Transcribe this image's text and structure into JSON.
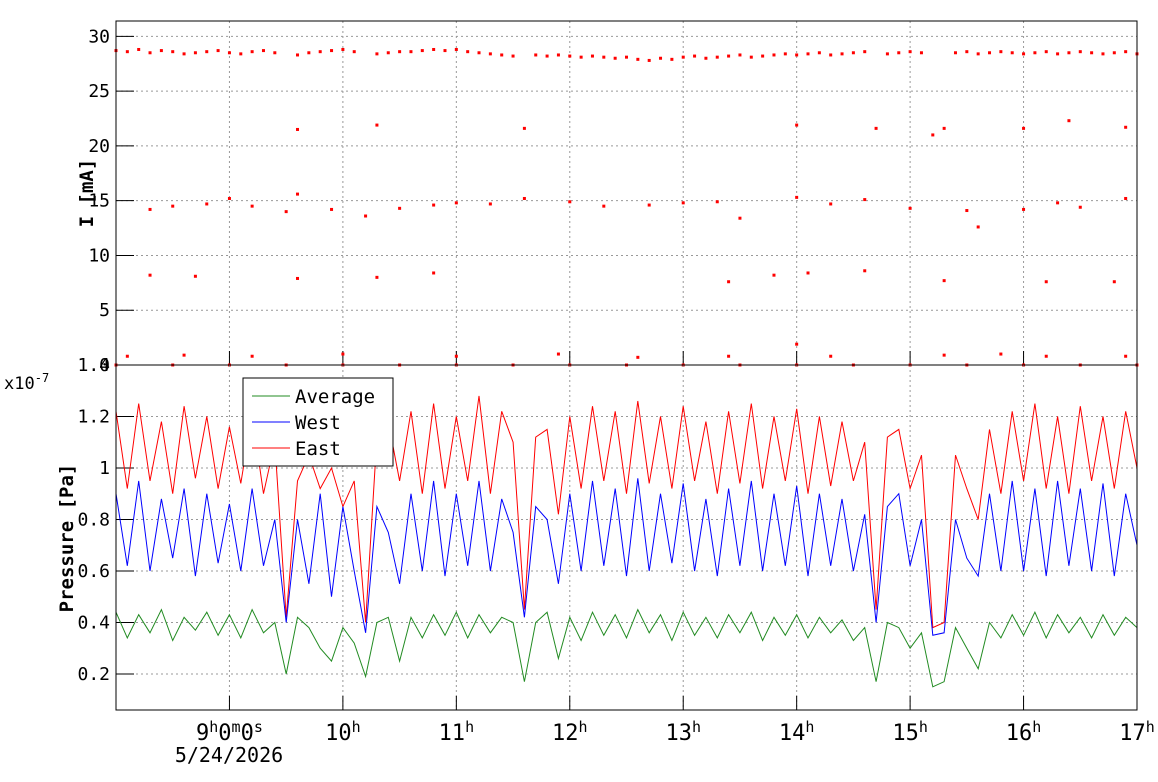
{
  "chart_data": [
    {
      "type": "scatter",
      "ylabel": "I [mA]",
      "color": "#ff0000",
      "grid": true,
      "xlim": [
        8,
        17
      ],
      "xticks": [
        9,
        10,
        11,
        12,
        13,
        14,
        15,
        16,
        17
      ],
      "ylim": [
        0,
        31.4
      ],
      "yticks": [
        0,
        5,
        10,
        15,
        20,
        25,
        30
      ],
      "x": [
        8.0,
        8.1,
        8.2,
        8.3,
        8.4,
        8.5,
        8.6,
        8.7,
        8.8,
        8.9,
        9.0,
        9.1,
        9.2,
        9.3,
        9.4,
        9.5,
        9.6,
        9.7,
        9.8,
        9.9,
        10.0,
        10.1,
        10.2,
        10.3,
        10.4,
        10.5,
        10.6,
        10.7,
        10.8,
        10.9,
        11.0,
        11.1,
        11.2,
        11.3,
        11.4,
        11.5,
        11.6,
        11.7,
        11.8,
        11.9,
        12.0,
        12.1,
        12.2,
        12.3,
        12.4,
        12.5,
        12.6,
        12.7,
        12.8,
        12.9,
        13.0,
        13.1,
        13.2,
        13.3,
        13.4,
        13.5,
        13.6,
        13.7,
        13.8,
        13.9,
        14.0,
        14.1,
        14.2,
        14.3,
        14.4,
        14.5,
        14.6,
        14.7,
        14.8,
        14.9,
        15.0,
        15.1,
        15.2,
        15.3,
        15.4,
        15.5,
        15.6,
        15.7,
        15.8,
        15.9,
        16.0,
        16.1,
        16.2,
        16.3,
        16.4,
        16.5,
        16.6,
        16.7,
        16.8,
        16.9,
        17.0,
        8.3,
        8.5,
        8.8,
        9.0,
        9.2,
        9.5,
        9.6,
        9.9,
        10.2,
        10.5,
        10.8,
        11.0,
        11.3,
        11.6,
        12.0,
        12.3,
        12.7,
        13.0,
        13.3,
        13.5,
        14.0,
        14.3,
        14.6,
        15.0,
        15.5,
        15.6,
        16.0,
        16.3,
        16.5,
        16.9,
        9.6,
        10.3,
        11.6,
        14.0,
        14.7,
        15.2,
        15.3,
        16.0,
        16.4,
        16.9,
        8.3,
        8.7,
        9.6,
        10.3,
        10.8,
        13.4,
        13.8,
        14.1,
        14.6,
        15.3,
        16.2,
        16.8,
        8.1,
        8.6,
        9.2,
        10.0,
        11.0,
        11.9,
        12.6,
        13.4,
        14.0,
        14.3,
        15.3,
        15.8,
        16.2,
        16.9,
        8.0,
        8.5,
        9.0,
        9.5,
        10.0,
        10.5,
        11.0,
        11.5,
        12.0,
        12.5,
        13.0,
        13.5,
        14.0,
        14.5,
        15.0,
        15.5,
        16.0,
        16.5,
        17.0
      ],
      "values": [
        28.7,
        28.6,
        28.8,
        28.5,
        28.7,
        28.6,
        28.4,
        28.5,
        28.6,
        28.7,
        28.5,
        28.4,
        28.6,
        28.7,
        28.5,
        null,
        28.3,
        28.5,
        28.6,
        28.7,
        28.8,
        28.6,
        null,
        28.4,
        28.5,
        28.6,
        28.6,
        28.7,
        28.8,
        28.7,
        28.8,
        28.6,
        28.5,
        28.4,
        28.3,
        28.2,
        null,
        28.3,
        28.2,
        28.3,
        28.2,
        28.1,
        28.2,
        28.1,
        28.0,
        28.1,
        27.9,
        27.8,
        28.0,
        27.9,
        28.1,
        28.2,
        28.0,
        28.1,
        28.2,
        28.3,
        28.1,
        28.2,
        28.3,
        28.4,
        28.3,
        28.4,
        28.5,
        28.3,
        28.4,
        28.5,
        28.6,
        null,
        28.4,
        28.5,
        28.6,
        28.5,
        null,
        null,
        28.5,
        28.6,
        28.4,
        28.5,
        28.6,
        28.5,
        28.4,
        28.5,
        28.6,
        28.4,
        28.5,
        28.6,
        28.5,
        28.4,
        28.5,
        28.6,
        28.4,
        14.2,
        14.5,
        14.7,
        15.2,
        14.5,
        14.0,
        15.6,
        14.2,
        13.6,
        14.3,
        14.6,
        14.8,
        14.7,
        15.2,
        14.9,
        14.5,
        14.6,
        14.8,
        14.9,
        13.4,
        15.3,
        14.7,
        15.1,
        14.3,
        14.1,
        12.6,
        14.2,
        14.8,
        14.4,
        15.2,
        21.5,
        21.9,
        21.6,
        21.9,
        21.6,
        21.0,
        21.6,
        21.6,
        22.3,
        21.7,
        8.2,
        8.1,
        7.9,
        8.0,
        8.4,
        7.6,
        8.2,
        8.4,
        8.6,
        7.7,
        7.6,
        7.6,
        0.8,
        0.9,
        0.8,
        1.0,
        0.8,
        1.0,
        0.7,
        0.8,
        1.9,
        0.8,
        0.9,
        1.0,
        0.8,
        0.8,
        0,
        0,
        0,
        0,
        0,
        0,
        0,
        0,
        0,
        0,
        0,
        0,
        0,
        0,
        0,
        0,
        0,
        0,
        0
      ]
    },
    {
      "type": "line",
      "ylabel": "Pressure [Pa]",
      "y_multiplier": "x10-7",
      "time_offset": "5/24/2026",
      "grid": true,
      "legend": "upper left",
      "xlim": [
        8,
        17
      ],
      "xticks": [
        {
          "value": 9,
          "label": "9h0m0s"
        },
        {
          "value": 10,
          "label": "10h"
        },
        {
          "value": 11,
          "label": "11h"
        },
        {
          "value": 12,
          "label": "12h"
        },
        {
          "value": 13,
          "label": "13h"
        },
        {
          "value": 14,
          "label": "14h"
        },
        {
          "value": 15,
          "label": "15h"
        },
        {
          "value": 16,
          "label": "16h"
        },
        {
          "value": 17,
          "label": "17h"
        }
      ],
      "ylim": [
        0.06,
        1.4
      ],
      "yticks": [
        0.2,
        0.4,
        0.6,
        0.8,
        1,
        1.2,
        1.4
      ],
      "x": [
        8.0,
        8.1,
        8.2,
        8.3,
        8.4,
        8.5,
        8.6,
        8.7,
        8.8,
        8.9,
        9.0,
        9.1,
        9.2,
        9.3,
        9.4,
        9.5,
        9.6,
        9.7,
        9.8,
        9.9,
        10.0,
        10.1,
        10.2,
        10.3,
        10.4,
        10.5,
        10.6,
        10.7,
        10.8,
        10.9,
        11.0,
        11.1,
        11.2,
        11.3,
        11.4,
        11.5,
        11.6,
        11.7,
        11.8,
        11.9,
        12.0,
        12.1,
        12.2,
        12.3,
        12.4,
        12.5,
        12.6,
        12.7,
        12.8,
        12.9,
        13.0,
        13.1,
        13.2,
        13.3,
        13.4,
        13.5,
        13.6,
        13.7,
        13.8,
        13.9,
        14.0,
        14.1,
        14.2,
        14.3,
        14.4,
        14.5,
        14.6,
        14.7,
        14.8,
        14.9,
        15.0,
        15.1,
        15.2,
        15.3,
        15.4,
        15.5,
        15.6,
        15.7,
        15.8,
        15.9,
        16.0,
        16.1,
        16.2,
        16.3,
        16.4,
        16.5,
        16.6,
        16.7,
        16.8,
        16.9,
        17.0
      ],
      "series": [
        {
          "name": "Average",
          "color": "#228b22",
          "values": [
            0.44,
            0.34,
            0.43,
            0.36,
            0.45,
            0.33,
            0.42,
            0.37,
            0.44,
            0.35,
            0.43,
            0.34,
            0.45,
            0.36,
            0.4,
            0.2,
            0.42,
            0.38,
            0.3,
            0.25,
            0.38,
            0.32,
            0.19,
            0.4,
            0.42,
            0.25,
            0.42,
            0.34,
            0.43,
            0.35,
            0.44,
            0.34,
            0.43,
            0.36,
            0.42,
            0.4,
            0.17,
            0.4,
            0.44,
            0.26,
            0.42,
            0.33,
            0.44,
            0.35,
            0.43,
            0.34,
            0.45,
            0.36,
            0.43,
            0.33,
            0.44,
            0.35,
            0.42,
            0.34,
            0.43,
            0.36,
            0.44,
            0.33,
            0.42,
            0.35,
            0.43,
            0.34,
            0.42,
            0.36,
            0.41,
            0.33,
            0.38,
            0.17,
            0.4,
            0.38,
            0.3,
            0.36,
            0.15,
            0.17,
            0.38,
            0.3,
            0.22,
            0.4,
            0.34,
            0.43,
            0.35,
            0.44,
            0.34,
            0.43,
            0.36,
            0.42,
            0.34,
            0.43,
            0.35,
            0.42,
            0.38
          ]
        },
        {
          "name": "West",
          "color": "#0000ff",
          "values": [
            0.9,
            0.62,
            0.95,
            0.6,
            0.88,
            0.65,
            0.92,
            0.58,
            0.9,
            0.63,
            0.86,
            0.6,
            0.92,
            0.62,
            0.8,
            0.4,
            0.8,
            0.55,
            0.9,
            0.5,
            0.85,
            0.6,
            0.36,
            0.85,
            0.75,
            0.55,
            0.9,
            0.6,
            0.95,
            0.58,
            0.9,
            0.62,
            0.95,
            0.6,
            0.88,
            0.75,
            0.42,
            0.85,
            0.8,
            0.55,
            0.9,
            0.6,
            0.95,
            0.62,
            0.92,
            0.58,
            0.96,
            0.6,
            0.9,
            0.63,
            0.94,
            0.6,
            0.88,
            0.58,
            0.92,
            0.62,
            0.95,
            0.6,
            0.9,
            0.62,
            0.93,
            0.58,
            0.9,
            0.62,
            0.88,
            0.6,
            0.82,
            0.4,
            0.85,
            0.9,
            0.62,
            0.8,
            0.35,
            0.36,
            0.8,
            0.65,
            0.58,
            0.9,
            0.6,
            0.95,
            0.6,
            0.92,
            0.58,
            0.95,
            0.62,
            0.92,
            0.6,
            0.94,
            0.58,
            0.9,
            0.7
          ]
        },
        {
          "name": "East",
          "color": "#ff0000",
          "values": [
            1.22,
            0.92,
            1.25,
            0.95,
            1.18,
            0.9,
            1.24,
            0.96,
            1.2,
            0.92,
            1.16,
            0.94,
            1.21,
            0.9,
            1.1,
            0.42,
            0.95,
            1.05,
            0.92,
            1.0,
            0.85,
            0.95,
            0.4,
            1.12,
            1.18,
            0.95,
            1.22,
            0.9,
            1.25,
            0.92,
            1.2,
            0.95,
            1.28,
            0.9,
            1.22,
            1.1,
            0.45,
            1.12,
            1.15,
            0.82,
            1.2,
            0.92,
            1.24,
            0.95,
            1.22,
            0.9,
            1.26,
            0.94,
            1.2,
            0.92,
            1.24,
            0.95,
            1.18,
            0.9,
            1.22,
            0.94,
            1.25,
            0.92,
            1.2,
            0.95,
            1.23,
            0.9,
            1.2,
            0.93,
            1.18,
            0.95,
            1.1,
            0.45,
            1.12,
            1.15,
            0.92,
            1.05,
            0.38,
            0.4,
            1.05,
            0.92,
            0.8,
            1.15,
            0.9,
            1.22,
            0.95,
            1.25,
            0.92,
            1.2,
            0.9,
            1.24,
            0.95,
            1.2,
            0.92,
            1.22,
            1.0
          ]
        }
      ]
    }
  ]
}
